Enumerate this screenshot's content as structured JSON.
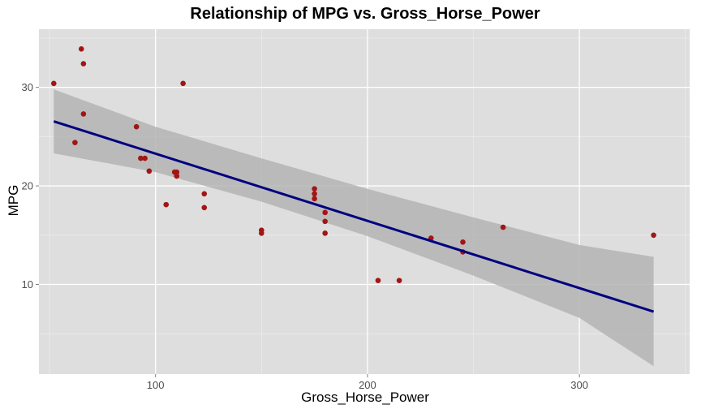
{
  "chart_data": {
    "type": "scatter",
    "title": "Relationship of MPG vs. Gross_Horse_Power",
    "xlabel": "Gross_Horse_Power",
    "ylabel": "MPG",
    "xlim": [
      45,
      352
    ],
    "ylim": [
      0.9,
      35.9
    ],
    "x_ticks": [
      100,
      200,
      300
    ],
    "y_ticks": [
      10,
      20,
      30
    ],
    "grid": true,
    "colors": {
      "panel": "#dedede",
      "grid": "#ffffff",
      "points": "#a31515",
      "trend": "#000080",
      "band": "#b4b4b4"
    },
    "points": [
      {
        "x": 52,
        "y": 30.4
      },
      {
        "x": 62,
        "y": 24.4
      },
      {
        "x": 65,
        "y": 33.9
      },
      {
        "x": 66,
        "y": 32.4
      },
      {
        "x": 66,
        "y": 27.3
      },
      {
        "x": 91,
        "y": 26.0
      },
      {
        "x": 93,
        "y": 22.8
      },
      {
        "x": 95,
        "y": 22.8
      },
      {
        "x": 97,
        "y": 21.5
      },
      {
        "x": 105,
        "y": 18.1
      },
      {
        "x": 109,
        "y": 21.4
      },
      {
        "x": 110,
        "y": 21.4
      },
      {
        "x": 110,
        "y": 21.0
      },
      {
        "x": 110,
        "y": 21.0
      },
      {
        "x": 113,
        "y": 30.4
      },
      {
        "x": 123,
        "y": 19.2
      },
      {
        "x": 123,
        "y": 17.8
      },
      {
        "x": 150,
        "y": 15.5
      },
      {
        "x": 150,
        "y": 15.2
      },
      {
        "x": 175,
        "y": 19.7
      },
      {
        "x": 175,
        "y": 19.2
      },
      {
        "x": 175,
        "y": 18.7
      },
      {
        "x": 180,
        "y": 17.3
      },
      {
        "x": 180,
        "y": 16.4
      },
      {
        "x": 180,
        "y": 15.2
      },
      {
        "x": 205,
        "y": 10.4
      },
      {
        "x": 215,
        "y": 10.4
      },
      {
        "x": 230,
        "y": 14.7
      },
      {
        "x": 245,
        "y": 14.3
      },
      {
        "x": 245,
        "y": 13.3
      },
      {
        "x": 264,
        "y": 15.8
      },
      {
        "x": 335,
        "y": 15.0
      }
    ],
    "trend_line": {
      "x": [
        52,
        335
      ],
      "y": [
        26.55,
        7.24
      ]
    },
    "confidence_band": {
      "x": [
        52,
        100,
        150,
        200,
        250,
        300,
        335
      ],
      "lower": [
        23.3,
        21.4,
        18.4,
        14.9,
        10.9,
        6.6,
        1.7
      ],
      "upper": [
        29.8,
        26.0,
        22.8,
        19.7,
        16.8,
        14.0,
        12.8
      ]
    }
  }
}
